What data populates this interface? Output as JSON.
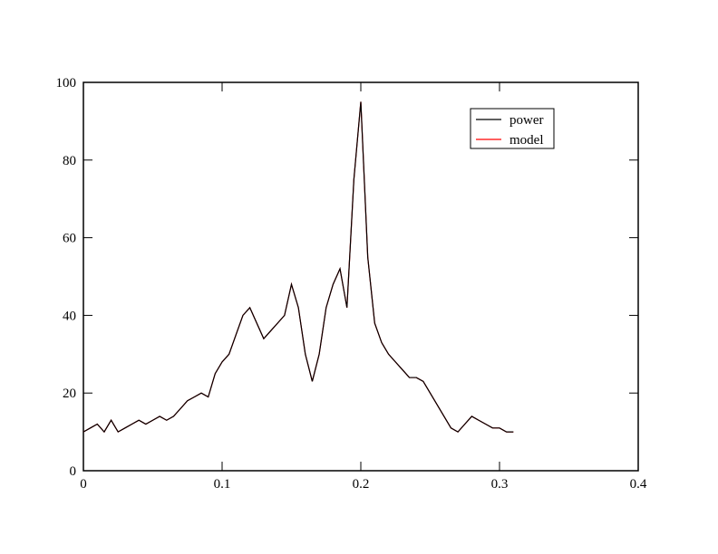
{
  "chart_data": {
    "type": "line",
    "x": [
      0,
      0.005,
      0.01,
      0.015,
      0.02,
      0.025,
      0.03,
      0.035,
      0.04,
      0.045,
      0.05,
      0.055,
      0.06,
      0.065,
      0.07,
      0.075,
      0.08,
      0.085,
      0.09,
      0.095,
      0.1,
      0.105,
      0.11,
      0.115,
      0.12,
      0.125,
      0.13,
      0.135,
      0.14,
      0.145,
      0.15,
      0.155,
      0.16,
      0.165,
      0.17,
      0.175,
      0.18,
      0.185,
      0.19,
      0.195,
      0.2,
      0.205,
      0.21,
      0.215,
      0.22,
      0.225,
      0.23,
      0.235,
      0.24,
      0.245,
      0.25,
      0.255,
      0.26,
      0.265,
      0.27,
      0.275,
      0.28,
      0.285,
      0.29,
      0.295,
      0.3,
      0.305,
      0.31
    ],
    "series": [
      {
        "name": "power",
        "color": "#000000",
        "values": [
          10,
          11,
          12,
          10,
          13,
          10,
          11,
          12,
          13,
          12,
          13,
          14,
          13,
          14,
          16,
          18,
          19,
          20,
          19,
          25,
          28,
          30,
          35,
          40,
          42,
          38,
          34,
          36,
          38,
          40,
          48,
          42,
          30,
          23,
          30,
          42,
          48,
          52,
          42,
          75,
          95,
          55,
          38,
          33,
          30,
          28,
          26,
          24,
          24,
          23,
          20,
          17,
          14,
          11,
          10,
          12,
          14,
          13,
          12,
          11,
          11,
          10,
          10
        ]
      },
      {
        "name": "model",
        "color": "#ff0000",
        "values": [
          10,
          11,
          12,
          10,
          13,
          10,
          11,
          12,
          13,
          12,
          13,
          14,
          13,
          14,
          16,
          18,
          19,
          20,
          19,
          25,
          28,
          30,
          35,
          40,
          42,
          38,
          34,
          36,
          38,
          40,
          48,
          42,
          30,
          23,
          30,
          42,
          48,
          52,
          42,
          75,
          95,
          55,
          38,
          33,
          30,
          28,
          26,
          24,
          24,
          23,
          20,
          17,
          14,
          11,
          10,
          12,
          14,
          13,
          12,
          11,
          11,
          10,
          10
        ]
      }
    ],
    "xlim": [
      0,
      0.4
    ],
    "xticks": [
      0,
      0.1,
      0.2,
      0.3,
      0.4
    ],
    "ylim": [
      0,
      100
    ],
    "yticks": [
      0,
      20,
      40,
      60,
      80,
      100
    ]
  }
}
